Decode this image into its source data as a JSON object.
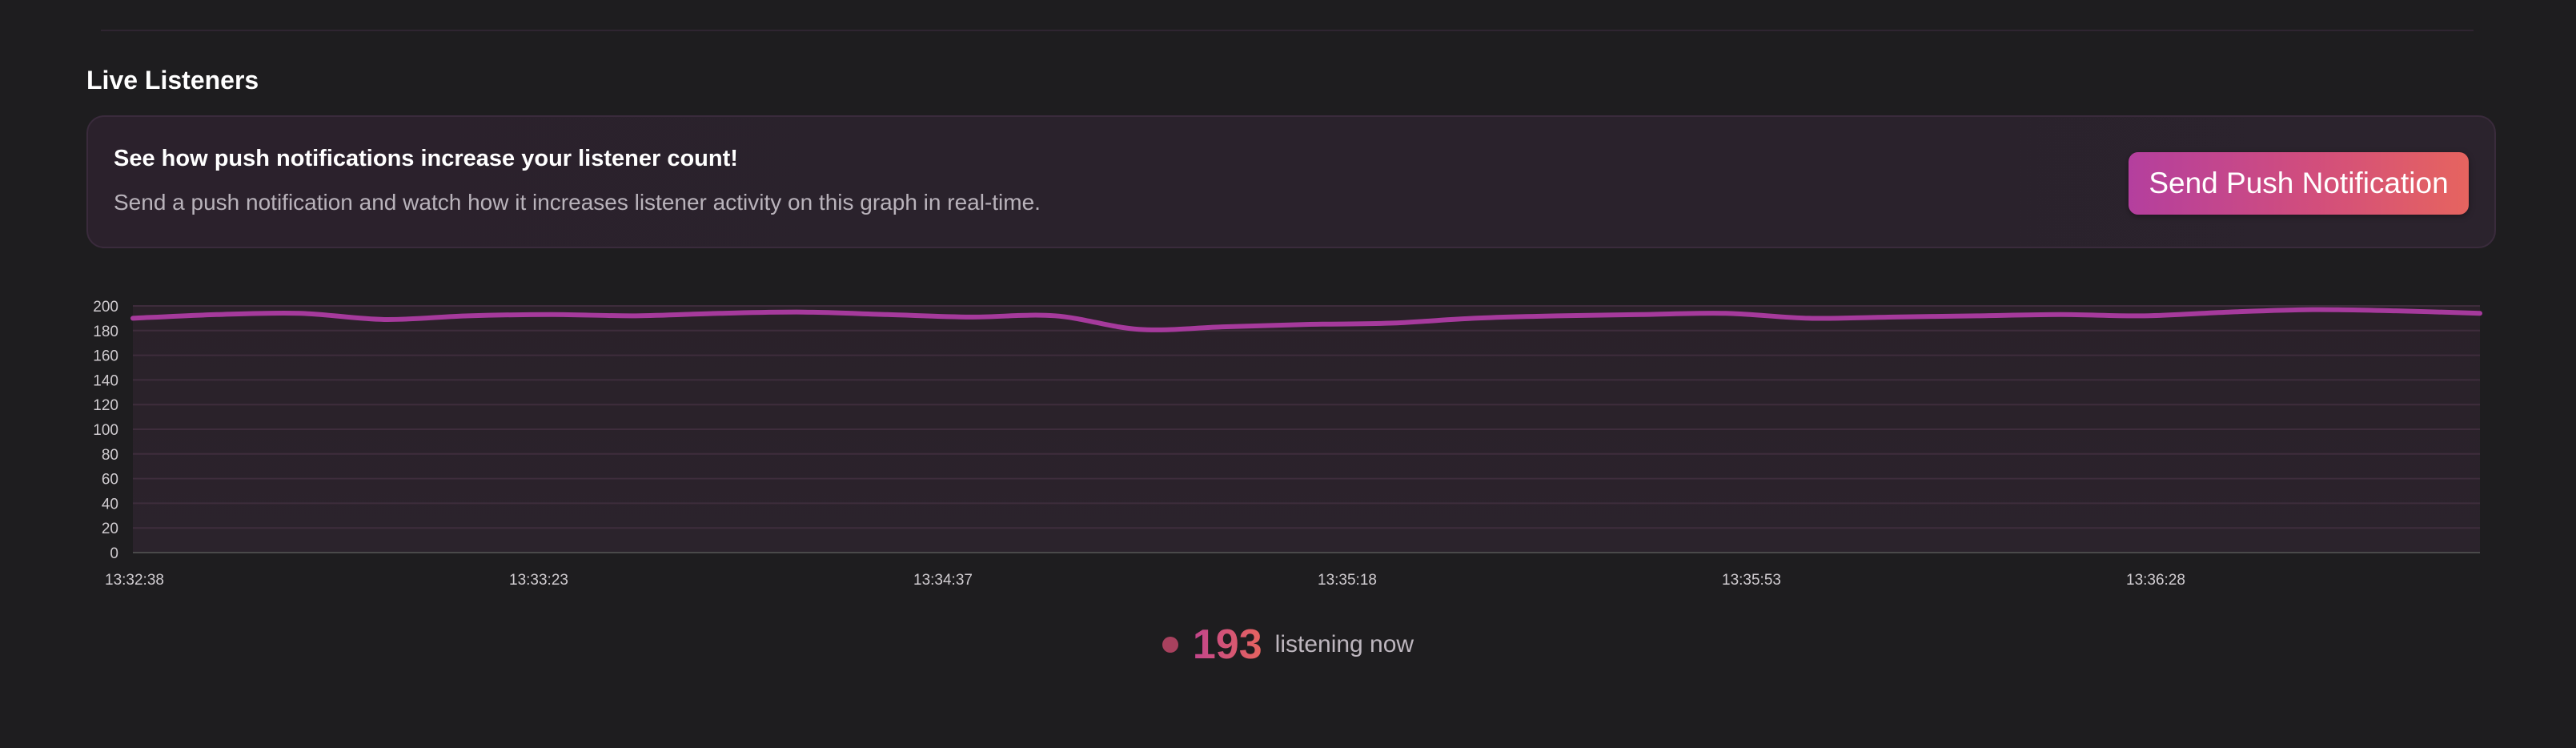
{
  "section": {
    "title": "Live Listeners"
  },
  "promo": {
    "heading": "See how push notifications increase your listener count!",
    "description": "Send a push notification and watch how it increases listener activity on this graph in real-time.",
    "button_label": "Send Push Notification"
  },
  "colors": {
    "accent_start": "#b43f9e",
    "accent_end": "#e6645f",
    "line": "#a63a9c",
    "background": "#1e1d1f"
  },
  "chart_data": {
    "type": "line",
    "title": "",
    "xlabel": "",
    "ylabel": "",
    "ylim": [
      0,
      200
    ],
    "y_ticks": [
      0,
      20,
      40,
      60,
      80,
      100,
      120,
      140,
      160,
      180,
      200
    ],
    "x_tick_labels": [
      "13:32:38",
      "13:33:23",
      "13:34:37",
      "13:35:18",
      "13:35:53",
      "13:36:28"
    ],
    "grid": true,
    "series": [
      {
        "values": [
          190,
          193,
          194,
          189,
          192,
          193,
          192,
          194,
          195,
          193,
          191,
          192,
          181,
          183,
          185,
          186,
          190,
          192,
          193,
          194,
          190,
          191,
          192,
          193,
          192,
          195,
          197,
          196,
          194
        ]
      }
    ]
  },
  "status": {
    "count": "193",
    "label": "listening now"
  }
}
